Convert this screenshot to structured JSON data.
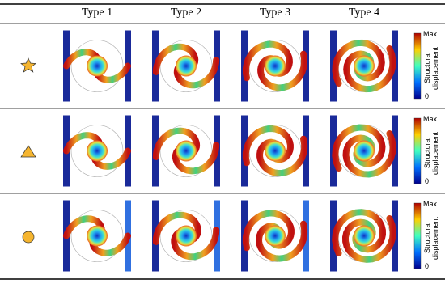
{
  "table": {
    "headers": [
      "Type 1",
      "Type 2",
      "Type 3",
      "Type 4"
    ],
    "rows": [
      {
        "colorbar": {
          "max": "Max",
          "label": "Structural displacement",
          "min": "0"
        }
      },
      {
        "colorbar": {
          "max": "Max",
          "label": "Structural displacement",
          "min": "0"
        }
      },
      {
        "colorbar": {
          "max": "Max",
          "label": "Structural displacement",
          "min": "0"
        }
      }
    ]
  }
}
